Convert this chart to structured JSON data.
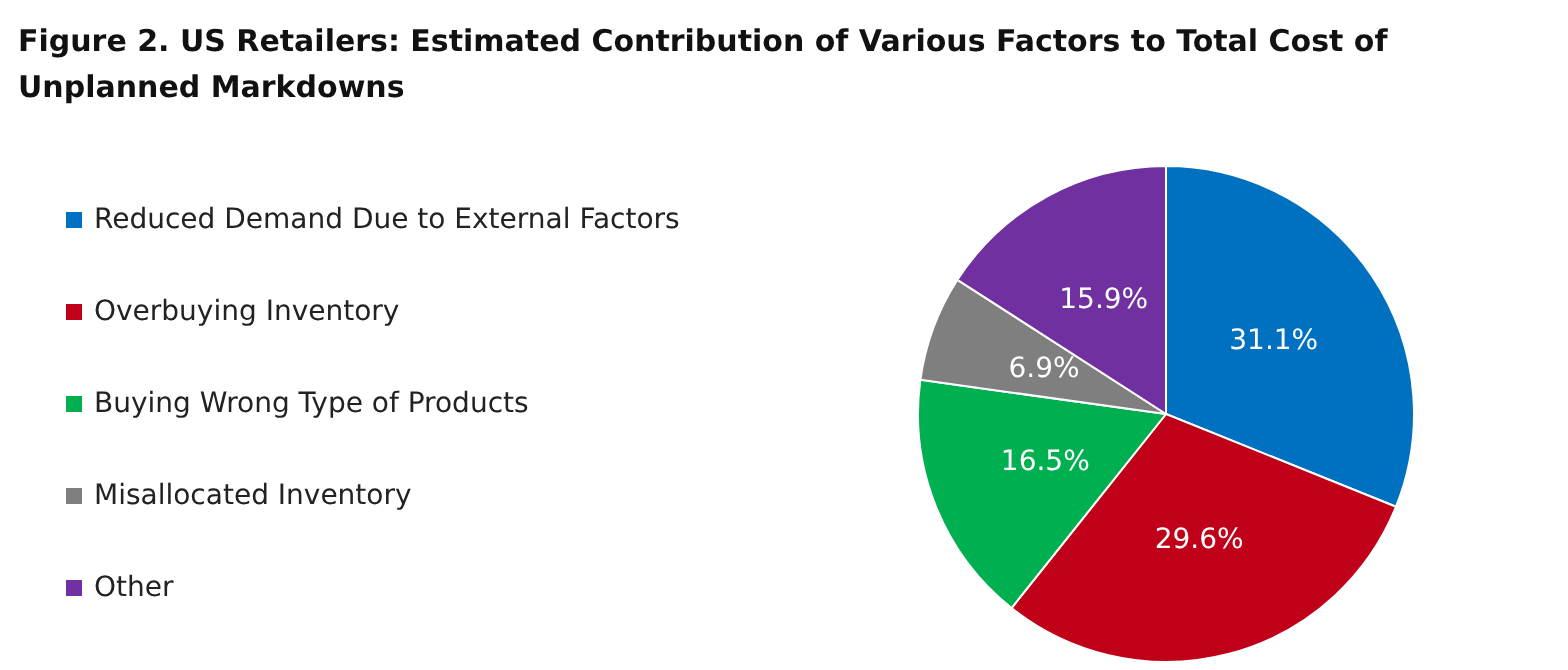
{
  "chart_data": {
    "type": "pie",
    "title": "Figure 2. US Retailers: Estimated Contribution of Various Factors to Total Cost of Unplanned Markdowns",
    "categories": [
      "Reduced Demand Due to External Factors",
      "Overbuying Inventory",
      "Buying Wrong Type of Products",
      "Misallocated Inventory",
      "Other"
    ],
    "values": [
      31.1,
      29.6,
      16.5,
      6.9,
      15.9
    ],
    "colors": [
      "#0070c0",
      "#c00018",
      "#00b050",
      "#7f7f7f",
      "#7030a0"
    ],
    "value_labels": [
      "31.1%",
      "29.6%",
      "16.5%",
      "6.9%",
      "15.9%"
    ],
    "legend": "left"
  }
}
